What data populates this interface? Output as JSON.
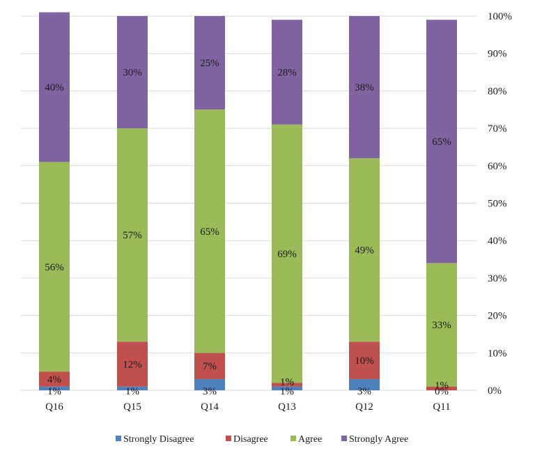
{
  "chart_data": {
    "type": "bar",
    "stacked": true,
    "title": "",
    "xlabel": "",
    "ylabel": "",
    "ylim": [
      0,
      100
    ],
    "y_axis_side": "right",
    "y_ticks": [
      "0%",
      "10%",
      "20%",
      "30%",
      "40%",
      "50%",
      "60%",
      "70%",
      "80%",
      "90%",
      "100%"
    ],
    "grid": true,
    "legend_position": "bottom",
    "categories": [
      "Q16",
      "Q15",
      "Q14",
      "Q13",
      "Q12",
      "Q11"
    ],
    "series": [
      {
        "name": "Strongly Disagree",
        "color": "#4f81bd",
        "values": [
          1,
          1,
          3,
          1,
          3,
          0
        ],
        "labels": [
          "1%",
          "1%",
          "3%",
          "1%",
          "3%",
          "0%"
        ]
      },
      {
        "name": "Disagree",
        "color": "#c0504d",
        "values": [
          4,
          12,
          7,
          1,
          10,
          1
        ],
        "labels": [
          "4%",
          "12%",
          "7%",
          "1%",
          "10%",
          "1%"
        ]
      },
      {
        "name": "Agree",
        "color": "#9bbb59",
        "values": [
          56,
          57,
          65,
          69,
          49,
          33
        ],
        "labels": [
          "56%",
          "57%",
          "65%",
          "69%",
          "49%",
          "33%"
        ]
      },
      {
        "name": "Strongly Agree",
        "color": "#8064a2",
        "values": [
          40,
          30,
          25,
          28,
          38,
          65
        ],
        "labels": [
          "40%",
          "30%",
          "25%",
          "28%",
          "38%",
          "65%"
        ]
      }
    ]
  }
}
